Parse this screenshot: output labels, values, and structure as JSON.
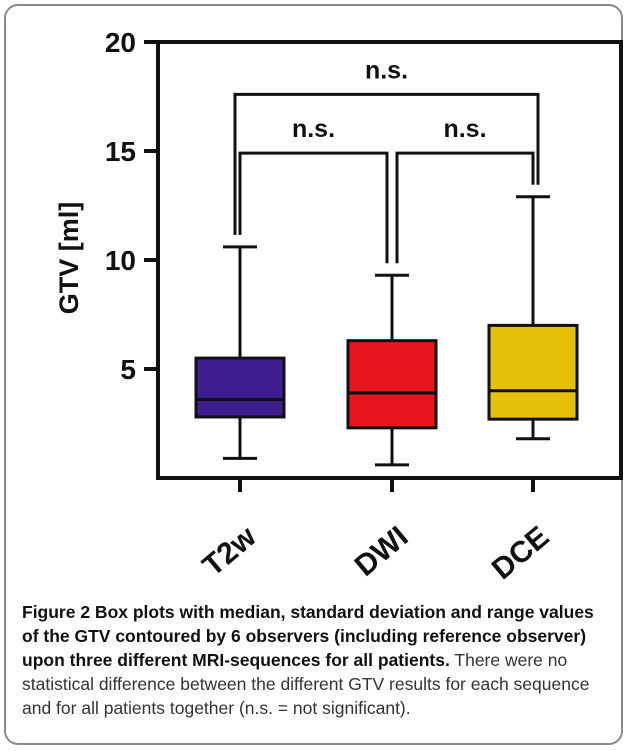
{
  "chart_data": {
    "type": "box",
    "ylabel": "GTV  [ml]",
    "ylim": [
      0,
      20
    ],
    "yticks": [
      5,
      10,
      15,
      20
    ],
    "categories": [
      "T2w",
      "DWI",
      "DCE"
    ],
    "boxes": [
      {
        "name": "T2w",
        "min": 0.9,
        "q1": 2.8,
        "median": 3.6,
        "q3": 5.5,
        "max": 10.6,
        "color": "#3d1e8e"
      },
      {
        "name": "DWI",
        "min": 0.6,
        "q1": 2.3,
        "median": 3.9,
        "q3": 6.3,
        "max": 9.3,
        "color": "#e8141e"
      },
      {
        "name": "DCE",
        "min": 1.8,
        "q1": 2.7,
        "median": 4.0,
        "q3": 7.0,
        "max": 12.9,
        "color": "#e6c00a"
      }
    ],
    "comparisons": [
      {
        "from": "T2w",
        "to": "DWI",
        "label": "n.s.",
        "level": 14.9
      },
      {
        "from": "DWI",
        "to": "DCE",
        "label": "n.s.",
        "level": 14.9
      },
      {
        "from": "T2w",
        "to": "DCE",
        "label": "n.s.",
        "level": 17.6
      }
    ]
  },
  "caption": {
    "title": "Figure 2 Box plots with median, standard deviation and range values of the GTV contoured by 6 observers (including reference observer) upon three different MRI-sequences for all patients.",
    "body": "There were no statistical difference between the different GTV results for each sequence and for all patients together (n.s. = not significant)."
  }
}
